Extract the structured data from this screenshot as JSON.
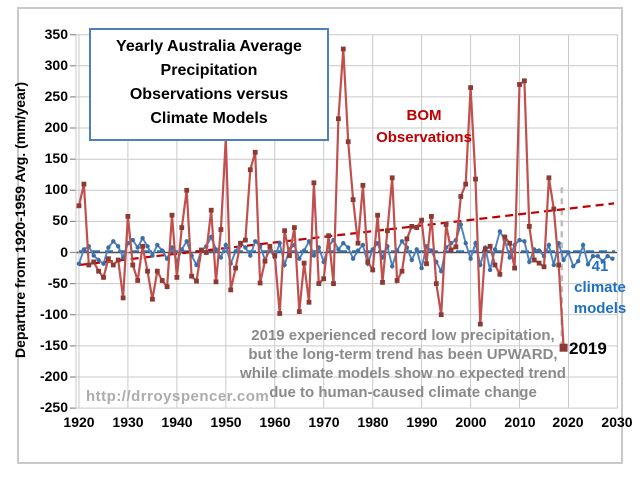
{
  "figure": {
    "y_axis_title": "Departure from 1920-1959 Avg. (mm/year)",
    "title_lines": [
      "Yearly Australia Average",
      "Precipitation",
      "Observations versus",
      "Climate Models"
    ],
    "watermark": "http://drroyspencer.com",
    "labels": {
      "bom_line1": "BOM",
      "bom_line2": "Observations",
      "models_line1": "41",
      "models_line2": "climate",
      "models_line3": "models",
      "event_year": "2019"
    },
    "annotation_lines": [
      "2019 experienced record low precipitation,",
      "but the long-term trend has been UPWARD,",
      "while climate models show no expected trend",
      "due to human-caused climate change"
    ]
  },
  "colors": {
    "obs_line": "#c0504d",
    "obs_marker": "#8e3a34",
    "obs_trend": "#c00000",
    "models_line": "#4f81bd",
    "models_marker": "#3a6ea5",
    "models_trend": "#2e74b5",
    "grid": "#c9c9c9",
    "zero_line": "#4d4d4d",
    "tick_mark": "#8c8c8c",
    "event_line": "#bfbfbf",
    "title_border": "#4e81bb",
    "bom_text": "#c00000",
    "models_text": "#1f6fc0",
    "annotation_text": "#8a8a8a",
    "watermark_text": "#acacac"
  },
  "chart_data": {
    "type": "line",
    "title": "Yearly Australia Average Precipitation Observations versus Climate Models",
    "xlabel": "",
    "ylabel": "Departure from 1920-1959 Avg. (mm/year)",
    "xlim": [
      1919,
      2031
    ],
    "ylim": [
      -250,
      350
    ],
    "grid": true,
    "x_ticks": [
      1920,
      1930,
      1940,
      1950,
      1960,
      1970,
      1980,
      1990,
      2000,
      2010,
      2020,
      2030
    ],
    "y_ticks": [
      350,
      300,
      250,
      200,
      150,
      100,
      50,
      0,
      -50,
      -100,
      -150,
      -200,
      -250
    ],
    "series": [
      {
        "name": "BOM Observations",
        "x_start_year": 1920,
        "marker": "square",
        "values": [
          75,
          110,
          -20,
          -15,
          -30,
          -40,
          -10,
          -20,
          -12,
          -73,
          58,
          -20,
          -45,
          10,
          -30,
          -75,
          -30,
          -45,
          -55,
          60,
          -40,
          40,
          100,
          -38,
          -46,
          4,
          0,
          68,
          -47,
          37,
          183,
          -60,
          -25,
          15,
          20,
          133,
          161,
          -49,
          -14,
          10,
          -5,
          -98,
          35,
          -5,
          40,
          -95,
          -17,
          -80,
          112,
          -50,
          -42,
          27,
          -50,
          215,
          327,
          178,
          85,
          15,
          108,
          -15,
          -28,
          60,
          -48,
          35,
          120,
          -45,
          -30,
          22,
          42,
          40,
          52,
          -18,
          58,
          -50,
          -100,
          45,
          4,
          9,
          90,
          110,
          265,
          118,
          -115,
          5,
          10,
          -20,
          -35,
          25,
          15,
          -25,
          270,
          276,
          42,
          -12,
          -17,
          -23,
          120,
          70,
          -20,
          -153
        ]
      },
      {
        "name": "41 climate models",
        "x_start_year": 1920,
        "marker": "circle",
        "values": [
          -18,
          5,
          10,
          -5,
          -12,
          -18,
          8,
          18,
          10,
          -8,
          15,
          20,
          8,
          23,
          10,
          -5,
          12,
          3,
          -10,
          8,
          -15,
          5,
          18,
          -5,
          -20,
          3,
          10,
          25,
          5,
          -8,
          12,
          -18,
          2,
          15,
          8,
          -5,
          18,
          10,
          -12,
          4,
          -8,
          15,
          -20,
          5,
          12,
          -10,
          3,
          18,
          -5,
          8,
          -15,
          10,
          20,
          5,
          15,
          8,
          -10,
          3,
          12,
          -18,
          5,
          15,
          -8,
          10,
          -22,
          3,
          18,
          8,
          -12,
          5,
          -25,
          10,
          3,
          -15,
          -30,
          8,
          15,
          20,
          45,
          15,
          -10,
          15,
          -20,
          8,
          -28,
          5,
          34,
          20,
          -8,
          12,
          20,
          18,
          -15,
          5,
          3,
          -6,
          12,
          -20,
          15,
          -12,
          0,
          -22,
          -14,
          12,
          -19,
          -6,
          -6,
          -14,
          -6,
          -10
        ]
      }
    ],
    "trend_lines": [
      {
        "name": "observations-trend",
        "start_year": 1920,
        "start_value": -20,
        "end_year": 2029.3,
        "end_value": 79
      },
      {
        "name": "models-trend",
        "start_year": 1920,
        "start_value": 2,
        "end_year": 2029.5,
        "end_value": 2
      }
    ],
    "event_marker_line": {
      "year": 2018.65,
      "value_top": 105,
      "value_bottom": -158
    },
    "highlight_point": {
      "year": 2019,
      "value": -153,
      "label": "2019"
    },
    "legend_position": "inline-text-labels",
    "axis_range_note": "y: -250 to 350 mm/year; x: 1920 to 2030"
  }
}
